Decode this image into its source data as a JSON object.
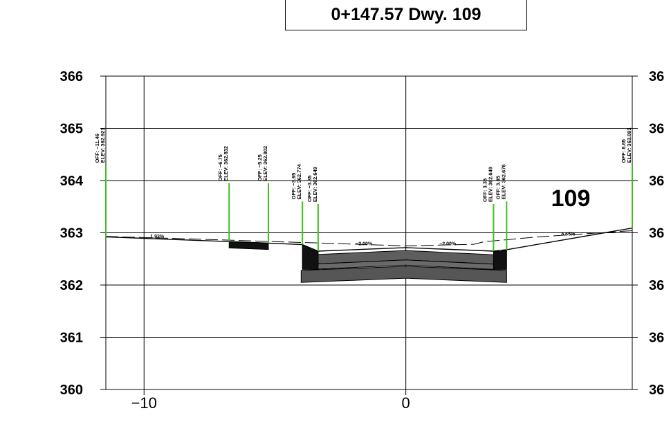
{
  "title": "0+147.57 Dwy. 109",
  "driveway_number": "109",
  "chart_data": {
    "type": "line",
    "ylim": [
      360,
      366
    ],
    "xlim": [
      -11.46,
      8.65
    ],
    "y_ticks": [
      "366",
      "365",
      "364",
      "363",
      "362",
      "361",
      "360"
    ],
    "x_ticks": [
      {
        "value": -10,
        "label": "−10"
      },
      {
        "value": 0,
        "label": "0"
      }
    ],
    "right_tick_fragments": [
      "36",
      "36",
      "36",
      "36",
      "36",
      "36",
      "36"
    ],
    "profile": [
      {
        "x": -11.46,
        "y": 362.921
      },
      {
        "x": -6.75,
        "y": 362.832
      },
      {
        "x": -5.25,
        "y": 362.802
      },
      {
        "x": -3.95,
        "y": 362.774
      },
      {
        "x": -3.35,
        "y": 362.649
      },
      {
        "x": 0,
        "y": 362.716
      },
      {
        "x": 3.35,
        "y": 362.649
      },
      {
        "x": 3.85,
        "y": 362.676
      },
      {
        "x": 8.65,
        "y": 363.091
      }
    ],
    "existing_ground": [
      {
        "x": -11.46,
        "y": 362.93
      },
      {
        "x": -8,
        "y": 362.88
      },
      {
        "x": -5,
        "y": 362.83
      },
      {
        "x": -3,
        "y": 362.8
      },
      {
        "x": 0,
        "y": 362.75
      },
      {
        "x": 2.6,
        "y": 362.78
      },
      {
        "x": 3.0,
        "y": 362.83
      },
      {
        "x": 5,
        "y": 362.92
      },
      {
        "x": 8.65,
        "y": 363.04
      }
    ],
    "callouts": [
      {
        "x": -11.46,
        "top_y": 364.3,
        "off_label": "OFF:",
        "off": "−11.46",
        "elev_label": "ELEV:",
        "elev": "362.921"
      },
      {
        "x": -6.75,
        "top_y": 363.95,
        "off_label": "OFF:",
        "off": "−6.75",
        "elev_label": "ELEV:",
        "elev": "362.832"
      },
      {
        "x": -5.25,
        "top_y": 363.95,
        "off_label": "OFF:",
        "off": "−5.25",
        "elev_label": "ELEV:",
        "elev": "362.802"
      },
      {
        "x": -3.95,
        "top_y": 363.6,
        "off_label": "OFF:",
        "off": "−3.95",
        "elev_label": "ELEV:",
        "elev": "362.774"
      },
      {
        "x": -3.35,
        "top_y": 363.55,
        "off_label": "OFF:",
        "off": "−3.35",
        "elev_label": "ELEV:",
        "elev": "362.649"
      },
      {
        "x": 3.35,
        "top_y": 363.55,
        "off_label": "OFF:",
        "off": "3.35",
        "elev_label": "ELEV:",
        "elev": "362.649"
      },
      {
        "x": 3.85,
        "top_y": 363.6,
        "off_label": "OFF:",
        "off": "3.85",
        "elev_label": "ELEV:",
        "elev": "362.676"
      },
      {
        "x": 8.65,
        "top_y": 364.3,
        "off_label": "OFF:",
        "off": "8.65",
        "elev_label": "ELEV:",
        "elev": "363.091"
      }
    ],
    "slope_labels": [
      {
        "text": "1.93%",
        "x": -9.5,
        "y": 362.9
      },
      {
        "text": "−2.00%",
        "x": -1.6,
        "y": 362.76
      },
      {
        "text": "−2.00%",
        "x": 1.6,
        "y": 362.76
      },
      {
        "text": "8.65%",
        "x": 6.2,
        "y": 362.95
      }
    ],
    "pavement_layers": [
      {
        "color": "#5e5e5e",
        "top": [
          [
            -3.6,
            362.58
          ],
          [
            0,
            362.66
          ],
          [
            3.35,
            362.58
          ]
        ],
        "bottom": [
          [
            -3.6,
            362.4
          ],
          [
            0,
            362.48
          ],
          [
            3.35,
            362.4
          ]
        ]
      },
      {
        "color": "#6a6a6a",
        "top": [
          [
            -3.6,
            362.4
          ],
          [
            0,
            362.48
          ],
          [
            3.35,
            362.4
          ]
        ],
        "bottom": [
          [
            -3.6,
            362.3
          ],
          [
            0,
            362.38
          ],
          [
            3.35,
            362.3
          ]
        ]
      },
      {
        "color": "#565656",
        "top": [
          [
            -4.0,
            362.28
          ],
          [
            0,
            362.36
          ],
          [
            3.85,
            362.28
          ]
        ],
        "bottom": [
          [
            -4.0,
            362.05
          ],
          [
            0,
            362.13
          ],
          [
            3.85,
            362.05
          ]
        ]
      }
    ],
    "curb_blocks": [
      {
        "color": "#111111",
        "pts": [
          [
            -3.95,
            362.774
          ],
          [
            -3.6,
            362.68
          ],
          [
            -3.35,
            362.649
          ],
          [
            -3.35,
            362.3
          ],
          [
            -3.95,
            362.3
          ]
        ]
      },
      {
        "color": "#111111",
        "pts": [
          [
            3.35,
            362.649
          ],
          [
            3.6,
            362.64
          ],
          [
            3.85,
            362.676
          ],
          [
            3.85,
            362.3
          ],
          [
            3.35,
            362.3
          ]
        ]
      },
      {
        "color": "#111111",
        "pts": [
          [
            -6.75,
            362.832
          ],
          [
            -5.25,
            362.802
          ],
          [
            -5.25,
            362.68
          ],
          [
            -6.75,
            362.71
          ]
        ]
      }
    ]
  }
}
